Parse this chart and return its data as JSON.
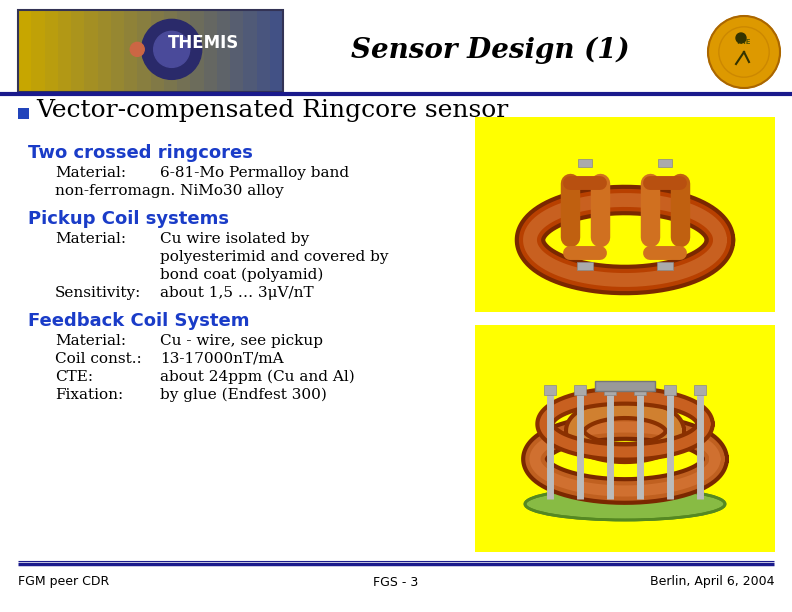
{
  "title": "Sensor Design (1)",
  "bullet_text": "Vector-compensated Ringcore sensor",
  "section1_title": "Two crossed ringcores",
  "section2_title": "Pickup Coil systems",
  "section3_title": "Feedback Coil System",
  "footer_left": "FGM peer CDR",
  "footer_center": "FGS - 3",
  "footer_right": "Berlin, April 6, 2004",
  "header_line_color": "#1a1a8c",
  "bullet_color": "#2244bb",
  "section_title_color": "#1a3cc8",
  "body_text_color": "#000000",
  "label_color": "#000000",
  "bg_color": "#ffffff",
  "image_bg_color": "#ffff00",
  "footer_line_color": "#1a1a8c",
  "header_bg": "#ffffff",
  "logo_left_color": "#c8a000",
  "logo_right_color": "#3a4a8a",
  "athena_color": "#cc8800"
}
